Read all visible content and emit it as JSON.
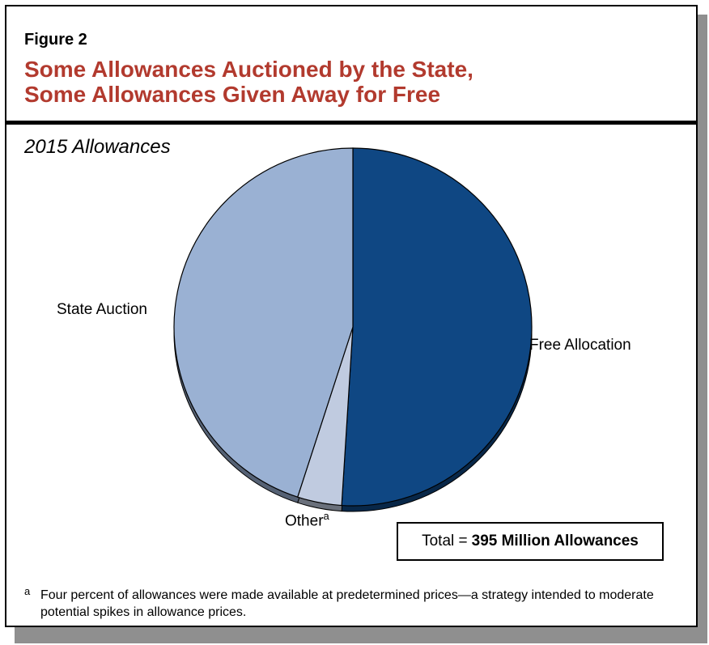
{
  "header": {
    "figure_label": "Figure 2",
    "title_line1": "Some Allowances Auctioned by the State,",
    "title_line2": "Some Allowances Given Away for Free"
  },
  "chart_data": {
    "type": "pie",
    "title": "Some Allowances Auctioned by the State, Some Allowances Given Away for Free",
    "subtitle": "2015 Allowances",
    "slices": [
      {
        "label": "Free Allocation",
        "value": 51,
        "color": "#0f4783"
      },
      {
        "label": "Other",
        "footnote_marker": "a",
        "value": 4,
        "color": "#c0cbe0"
      },
      {
        "label": "State Auction",
        "value": 45,
        "color": "#9ab1d3"
      }
    ],
    "total": {
      "prefix": "Total =",
      "value": "395 Million Allowances"
    }
  },
  "footnote": {
    "marker": "a",
    "text": "Four percent of allowances were made available at predetermined prices—a strategy intended to moderate potential spikes in allowance prices."
  }
}
